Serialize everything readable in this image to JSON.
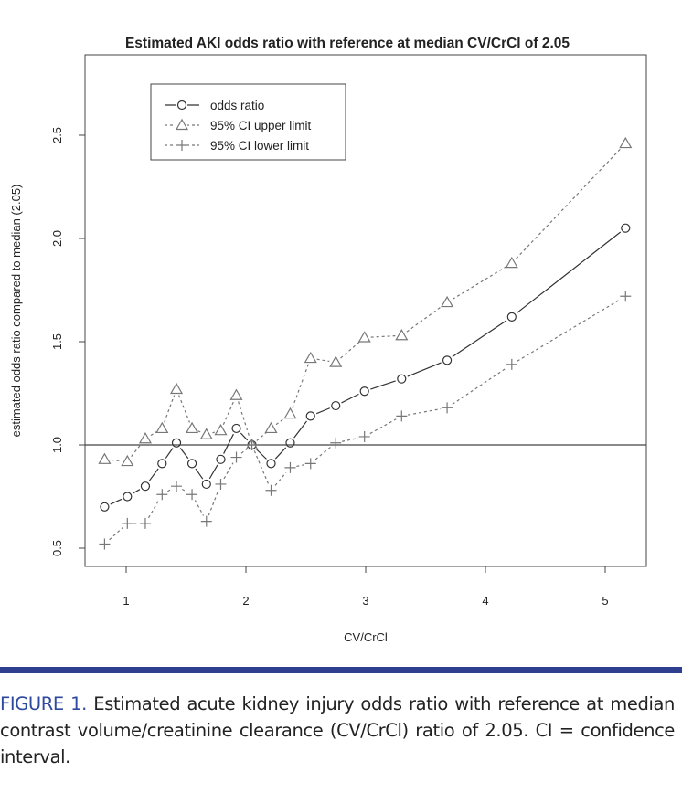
{
  "chart_data": {
    "type": "line",
    "title": "Estimated AKI odds ratio with reference at median CV/CrCl of 2.05",
    "xlabel": "CV/CrCl",
    "ylabel": "estimated odds ratio compared to median (2.05)",
    "xlim": [
      0.65,
      5.35
    ],
    "ylim": [
      0.42,
      2.62
    ],
    "xticks": [
      1,
      2,
      3,
      4,
      5
    ],
    "yticks": [
      0.5,
      1.0,
      1.5,
      2.0,
      2.5
    ],
    "ytick_labels": [
      "0.5",
      "1.0",
      "1.5",
      "2.0",
      "2.5"
    ],
    "reference_line": 1.0,
    "grid": false,
    "legend_position": "top-left",
    "x": [
      0.82,
      1.01,
      1.16,
      1.3,
      1.42,
      1.55,
      1.67,
      1.79,
      1.92,
      2.05,
      2.21,
      2.37,
      2.54,
      2.75,
      2.99,
      3.3,
      3.68,
      4.22,
      5.17
    ],
    "series": [
      {
        "name": "odds ratio",
        "marker": "circle",
        "line": "dashed-solid",
        "color": "#333333",
        "values": [
          0.7,
          0.75,
          0.8,
          0.91,
          1.01,
          0.91,
          0.81,
          0.93,
          1.08,
          1.0,
          0.91,
          1.01,
          1.14,
          1.19,
          1.26,
          1.32,
          1.41,
          1.62,
          2.05
        ]
      },
      {
        "name": "95% CI upper limit",
        "marker": "triangle",
        "line": "dotted",
        "color": "#777777",
        "values": [
          0.93,
          0.92,
          1.03,
          1.08,
          1.27,
          1.08,
          1.05,
          1.07,
          1.24,
          1.0,
          1.08,
          1.15,
          1.42,
          1.4,
          1.52,
          1.53,
          1.69,
          1.88,
          2.46
        ]
      },
      {
        "name": "95% CI lower limit",
        "marker": "plus",
        "line": "dotted",
        "color": "#777777",
        "values": [
          0.52,
          0.62,
          0.62,
          0.76,
          0.8,
          0.76,
          0.63,
          0.81,
          0.94,
          1.0,
          0.78,
          0.89,
          0.91,
          1.01,
          1.04,
          1.14,
          1.18,
          1.39,
          1.72
        ]
      }
    ]
  },
  "caption": {
    "label": "FIGURE 1.",
    "text": " Estimated acute kidney injury odds ratio with reference at median contrast volume/creatinine clearance (CV/CrCl) ratio of 2.05. CI = confidence interval."
  },
  "colors": {
    "accent": "#2e3f8f",
    "caption_label": "#2e4a9e"
  }
}
